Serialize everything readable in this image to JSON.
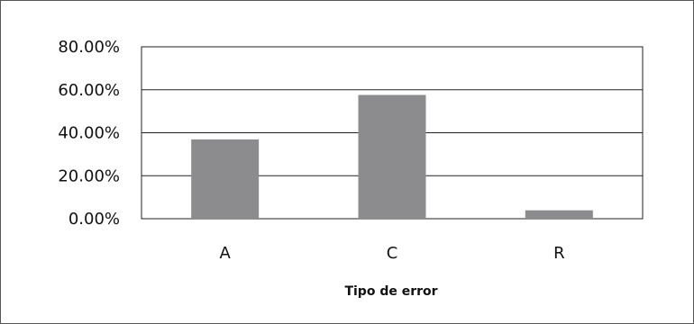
{
  "chart_data": {
    "type": "bar",
    "categories": [
      "A",
      "C",
      "R"
    ],
    "values": [
      36.9,
      57.6,
      3.9
    ],
    "xlabel": "Tipo de error",
    "ylabel": "",
    "ylim": [
      0,
      80
    ],
    "yticks": [
      "0.00%",
      "20.00%",
      "40.00%",
      "60.00%",
      "80.00%"
    ],
    "ytick_values": [
      0,
      20,
      40,
      60,
      80
    ],
    "grid": true,
    "legend": "none",
    "bar_color": "#8c8c8e",
    "grid_color": "#222222"
  }
}
